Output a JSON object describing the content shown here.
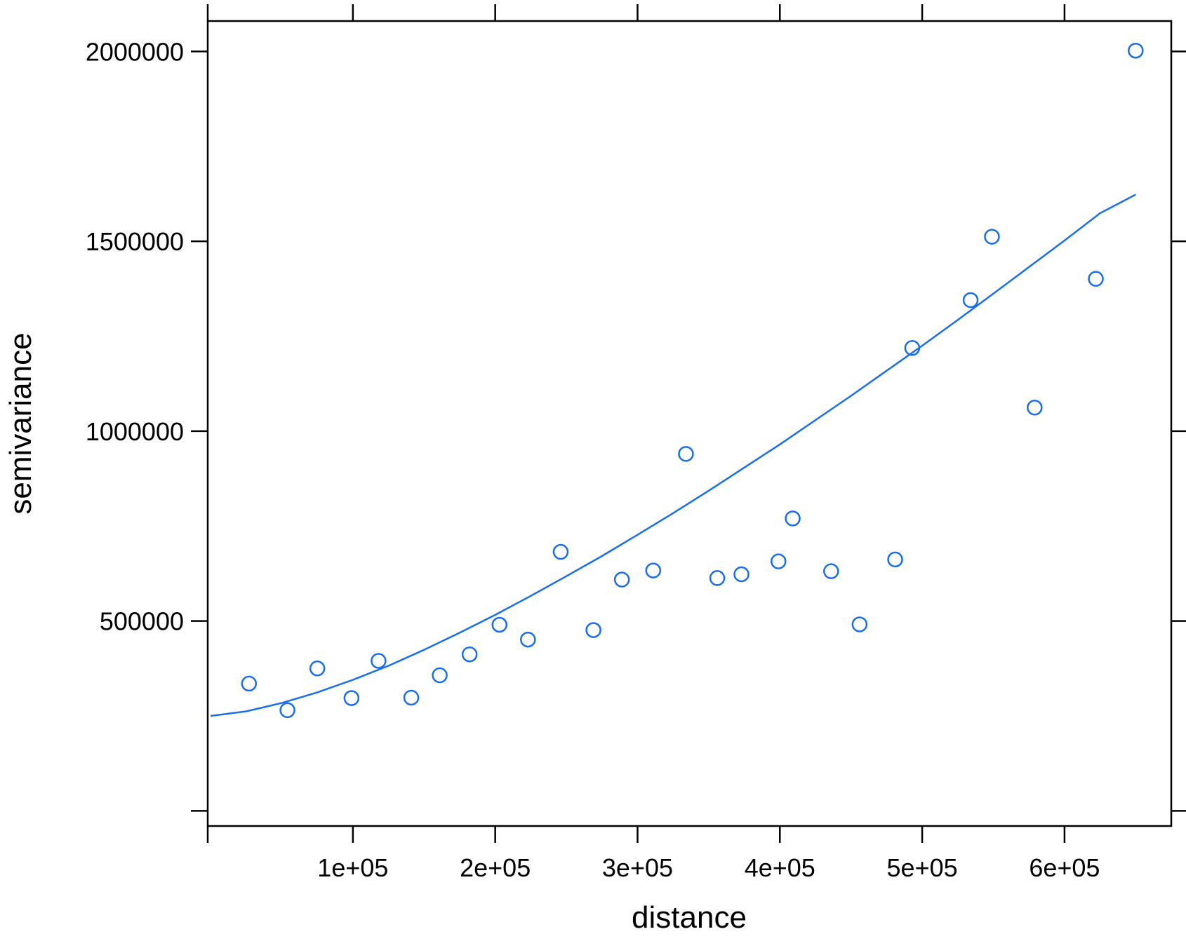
{
  "colors": {
    "points": "#1a6ee8",
    "line": "#1a6ee8",
    "frame": "#000000"
  },
  "chart_data": {
    "type": "scatter",
    "title": "",
    "xlabel": "distance",
    "ylabel": "semivariance",
    "xlim": [
      -2000,
      675000
    ],
    "ylim": [
      -40000,
      2080000
    ],
    "x_ticks": [
      100000,
      200000,
      300000,
      400000,
      500000,
      600000
    ],
    "x_tick_labels": [
      "1e+05",
      "2e+05",
      "3e+05",
      "4e+05",
      "5e+05",
      "6e+05"
    ],
    "y_ticks": [
      0,
      500000,
      1000000,
      1500000,
      2000000
    ],
    "y_tick_labels": [
      "",
      "500000",
      "1000000",
      "1500000",
      "2000000"
    ],
    "grid": false,
    "series": [
      {
        "kind": "points",
        "x": [
          27000,
          54000,
          75000,
          99000,
          118000,
          141000,
          161000,
          182000,
          203000,
          223000,
          246000,
          269000,
          289000,
          311000,
          334000,
          356000,
          373000,
          399000,
          409000,
          436000,
          456000,
          481000,
          493000,
          534000,
          549000,
          579000,
          622000,
          650000
        ],
        "y": [
          335000,
          265000,
          375000,
          297000,
          395000,
          298000,
          357000,
          412000,
          490000,
          451000,
          682000,
          476000,
          609000,
          633000,
          940000,
          613000,
          623000,
          657000,
          770000,
          631000,
          491000,
          662000,
          1219000,
          1345000,
          1512000,
          1062000,
          1401000,
          2002000
        ]
      },
      {
        "kind": "line",
        "x": [
          0,
          25000,
          50000,
          75000,
          100000,
          125000,
          150000,
          175000,
          200000,
          225000,
          250000,
          275000,
          300000,
          325000,
          350000,
          375000,
          400000,
          425000,
          450000,
          475000,
          500000,
          525000,
          550000,
          575000,
          600000,
          625000,
          650000
        ],
        "y": [
          250000,
          262000,
          284000,
          312000,
          345000,
          382000,
          424000,
          469000,
          516000,
          566000,
          618000,
          671000,
          727000,
          784000,
          843000,
          904000,
          965000,
          1029000,
          1093000,
          1159000,
          1225000,
          1293000,
          1362000,
          1432000,
          1502000,
          1574000,
          1623000
        ]
      }
    ]
  }
}
